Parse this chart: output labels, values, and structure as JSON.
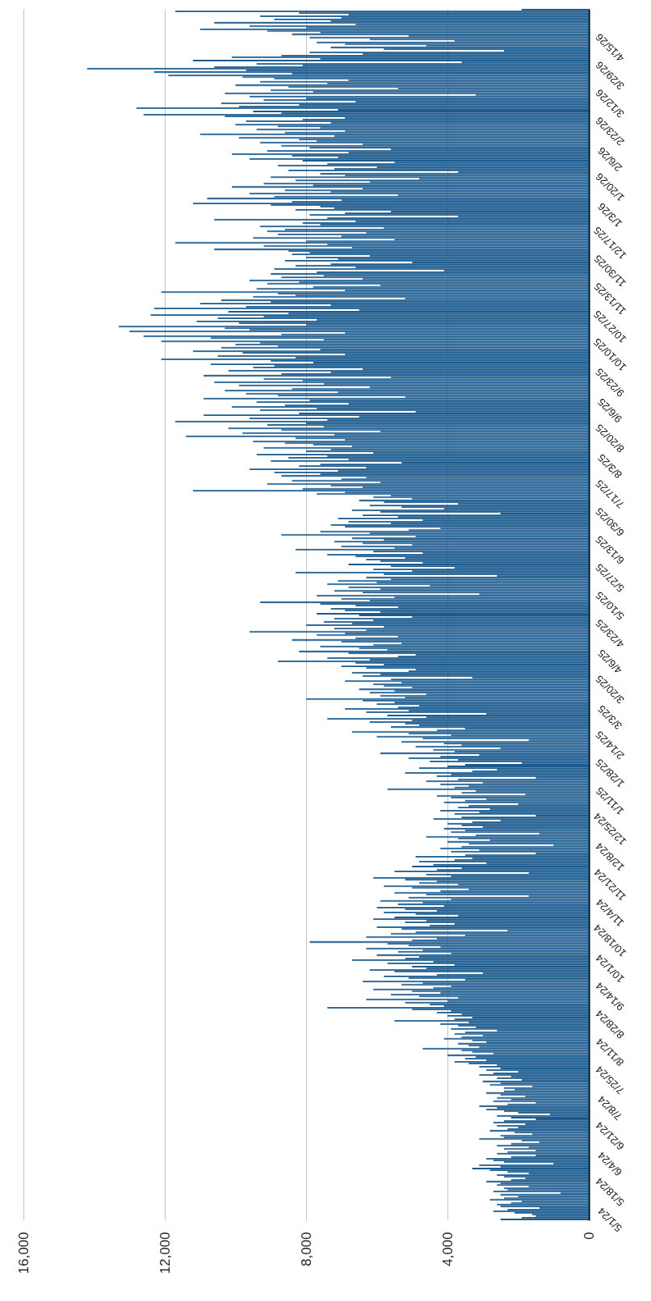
{
  "chart_data": {
    "type": "bar",
    "orientation": "horizontal",
    "color": "#1b5a8e",
    "grid": "x",
    "xlim": [
      16000,
      0
    ],
    "xticks": [
      {
        "value": 16000,
        "label": "16,000"
      },
      {
        "value": 12000,
        "label": "12,000"
      },
      {
        "value": 8000,
        "label": "8,000"
      },
      {
        "value": 4000,
        "label": "4,000"
      },
      0
    ],
    "categories": [
      null,
      null,
      null,
      null,
      null,
      null,
      null,
      null,
      null,
      null,
      null,
      null,
      null,
      null,
      null,
      null,
      null,
      null,
      null,
      null,
      null,
      null,
      null,
      "4/15/26",
      null,
      null,
      null,
      null,
      null,
      null,
      null,
      null,
      null,
      null,
      null,
      null,
      null,
      null,
      null,
      null,
      "3/29/26",
      null,
      null,
      null,
      null,
      null,
      null,
      null,
      null,
      null,
      null,
      null,
      null,
      null,
      null,
      null,
      null,
      "3/12/26",
      null,
      null,
      null,
      null,
      null,
      null,
      null,
      null,
      null,
      null,
      null,
      null,
      null,
      null,
      null,
      null,
      "2/23/26",
      null,
      null,
      null,
      null,
      null,
      null,
      null,
      null,
      null,
      null,
      null,
      null,
      null,
      null,
      null,
      null,
      "2/6/26",
      null,
      null,
      null,
      null,
      null,
      null,
      null,
      null,
      null,
      null,
      null,
      null,
      null,
      null,
      null,
      null,
      "1/20/26",
      null,
      null,
      null,
      null,
      null,
      null,
      null,
      null,
      null,
      null,
      null,
      null,
      null,
      null,
      null,
      null,
      "1/3/26",
      null,
      null,
      null,
      null,
      null,
      null,
      null,
      null,
      null,
      null,
      null,
      null,
      null,
      null,
      null,
      null,
      "12/17/25",
      null,
      null,
      null,
      null,
      null,
      null,
      null,
      null,
      null,
      null,
      null,
      null,
      null,
      null,
      null,
      null,
      "11/30/25",
      null,
      null,
      null,
      null,
      null,
      null,
      null,
      null,
      null,
      null,
      null,
      null,
      null,
      null,
      null,
      null,
      "11/13/25",
      null,
      null,
      null,
      null,
      null,
      null,
      null,
      null,
      null,
      null,
      null,
      null,
      null,
      null,
      null,
      null,
      "10/27/25",
      null,
      null,
      null,
      null,
      null,
      null,
      null,
      null,
      null,
      null,
      null,
      null,
      null,
      null,
      null,
      null,
      "10/10/25",
      null,
      null,
      null,
      null,
      null,
      null,
      null,
      null,
      null,
      null,
      null,
      null,
      null,
      null,
      null,
      null,
      "9/23/25",
      null,
      null,
      null,
      null,
      null,
      null,
      null,
      null,
      null,
      null,
      null,
      null,
      null,
      null,
      null,
      null,
      "9/6/25",
      null,
      null,
      null,
      null,
      null,
      null,
      null,
      null,
      null,
      null,
      null,
      null,
      null,
      null,
      null,
      null,
      "8/20/25",
      null,
      null,
      null,
      null,
      null,
      null,
      null,
      null,
      null,
      null,
      null,
      null,
      null,
      null,
      null,
      null,
      "8/3/25",
      null,
      null,
      null,
      null,
      null,
      null,
      null,
      null,
      null,
      null,
      null,
      null,
      null,
      null,
      null,
      null,
      "7/17/25",
      null,
      null,
      null,
      null,
      null,
      null,
      null,
      null,
      null,
      null,
      null,
      null,
      null,
      null,
      null,
      null,
      "6/30/25",
      null,
      null,
      null,
      null,
      null,
      null,
      null,
      null,
      null,
      null,
      null,
      null,
      null,
      null,
      null,
      null,
      "6/13/25",
      null,
      null,
      null,
      null,
      null,
      null,
      null,
      null,
      null,
      null,
      null,
      null,
      null,
      null,
      null,
      null,
      "5/27/25",
      null,
      null,
      null,
      null,
      null,
      null,
      null,
      null,
      null,
      null,
      null,
      null,
      null,
      null,
      null,
      null,
      "5/10/25",
      null,
      null,
      null,
      null,
      null,
      null,
      null,
      null,
      null,
      null,
      null,
      null,
      null,
      null,
      null,
      null,
      "4/23/25",
      null,
      null,
      null,
      null,
      null,
      null,
      null,
      null,
      null,
      null,
      null,
      null,
      null,
      null,
      null,
      null,
      "4/6/25",
      null,
      null,
      null,
      null,
      null,
      null,
      null,
      null,
      null,
      null,
      null,
      null,
      null,
      null,
      null,
      null,
      "3/20/25",
      null,
      null,
      null,
      null,
      null,
      null,
      null,
      null,
      null,
      null,
      null,
      null,
      null,
      null,
      null,
      null,
      "3/3/25",
      null,
      null,
      null,
      null,
      null,
      null,
      null,
      null,
      null,
      null,
      null,
      null,
      null,
      null,
      null,
      null,
      "2/14/25",
      null,
      null,
      null,
      null,
      null,
      null,
      null,
      null,
      null,
      null,
      null,
      null,
      null,
      null,
      null,
      null,
      "1/28/25",
      null,
      null,
      null,
      null,
      null,
      null,
      null,
      null,
      null,
      null,
      null,
      null,
      null,
      null,
      null,
      null,
      "1/11/25",
      null,
      null,
      null,
      null,
      null,
      null,
      null,
      null,
      null,
      null,
      null,
      null,
      null,
      null,
      null,
      null,
      "12/25/24",
      null,
      null,
      null,
      null,
      null,
      null,
      null,
      null,
      null,
      null,
      null,
      null,
      null,
      null,
      null,
      null,
      "12/8/24",
      null,
      null,
      null,
      null,
      null,
      null,
      null,
      null,
      null,
      null,
      null,
      null,
      null,
      null,
      null,
      null,
      "11/21/24",
      null,
      null,
      null,
      null,
      null,
      null,
      null,
      null,
      null,
      null,
      null,
      null,
      null,
      null,
      null,
      null,
      "11/4/24",
      null,
      null,
      null,
      null,
      null,
      null,
      null,
      null,
      null,
      null,
      null,
      null,
      null,
      null,
      null,
      null,
      "10/18/24",
      null,
      null,
      null,
      null,
      null,
      null,
      null,
      null,
      null,
      null,
      null,
      null,
      null,
      null,
      null,
      null,
      "10/1/24",
      null,
      null,
      null,
      null,
      null,
      null,
      null,
      null,
      null,
      null,
      null,
      null,
      null,
      null,
      null,
      null,
      "9/14/24",
      null,
      null,
      null,
      null,
      null,
      null,
      null,
      null,
      null,
      null,
      null,
      null,
      null,
      null,
      null,
      null,
      "8/28/24",
      null,
      null,
      null,
      null,
      null,
      null,
      null,
      null,
      null,
      null,
      null,
      null,
      null,
      null,
      null,
      null,
      "8/11/24",
      null,
      null,
      null,
      null,
      null,
      null,
      null,
      null,
      null,
      null,
      null,
      null,
      null,
      null,
      null,
      null,
      "7/25/24",
      null,
      null,
      null,
      null,
      null,
      null,
      null,
      null,
      null,
      null,
      null,
      null,
      null,
      null,
      null,
      null,
      "7/8/24",
      null,
      null,
      null,
      null,
      null,
      null,
      null,
      null,
      null,
      null,
      null,
      null,
      null,
      null,
      null,
      null,
      "6/21/24",
      null,
      null,
      null,
      null,
      null,
      null,
      null,
      null,
      null,
      null,
      null,
      null,
      null,
      null,
      null,
      null,
      "6/4/24",
      null,
      null,
      null,
      null,
      null,
      null,
      null,
      null,
      null,
      null,
      null,
      null,
      null,
      null,
      null,
      null,
      "5/18/24",
      null,
      null,
      null,
      null,
      null,
      null,
      null,
      null,
      null,
      null,
      null,
      null,
      null,
      null,
      null,
      null,
      "5/1/24"
    ],
    "values": [
      1900,
      11700,
      8200,
      6800,
      9300,
      7000,
      8900,
      7300,
      10600,
      6600,
      9600,
      8000,
      11000,
      9100,
      7600,
      8400,
      5100,
      7900,
      6200,
      3800,
      7700,
      6900,
      4600,
      7300,
      5800,
      2400,
      7900,
      6400,
      8700,
      10100,
      7600,
      11200,
      3600,
      9400,
      8100,
      10600,
      14200,
      9700,
      12300,
      8400,
      11900,
      9800,
      8900,
      6800,
      9300,
      7400,
      10000,
      8500,
      5400,
      9000,
      7800,
      10300,
      3200,
      9600,
      8000,
      9200,
      6600,
      10400,
      8200,
      9900,
      12800,
      7100,
      9500,
      8700,
      12600,
      10300,
      6900,
      8100,
      9700,
      7300,
      10000,
      8800,
      7600,
      9400,
      6900,
      8600,
      11000,
      7200,
      9900,
      8200,
      7700,
      9300,
      6400,
      8700,
      7900,
      5600,
      9100,
      6800,
      10100,
      8400,
      7100,
      9600,
      8100,
      5500,
      7400,
      8800,
      6000,
      7200,
      8500,
      3700,
      7600,
      6900,
      9000,
      4800,
      8300,
      6200,
      9200,
      7800,
      10100,
      6400,
      8600,
      7300,
      9600,
      5400,
      8900,
      10800,
      7000,
      8400,
      11200,
      9000,
      7600,
      7200,
      8300,
      5600,
      6900,
      7900,
      3700,
      7400,
      10600,
      6600,
      8100,
      7600,
      9300,
      5800,
      8600,
      9100,
      6300,
      8800,
      7000,
      9500,
      5500,
      8000,
      11700,
      7400,
      9200,
      6700,
      10600,
      8500,
      7900,
      8400,
      6200,
      8000,
      7100,
      8600,
      5000,
      7300,
      8300,
      6600,
      8900,
      4100,
      7700,
      9000,
      7500,
      8700,
      6400,
      9600,
      8200,
      9100,
      5900,
      7800,
      9400,
      6900,
      12100,
      8800,
      8300,
      9500,
      5200,
      10400,
      9000,
      11000,
      7300,
      9700,
      12300,
      6500,
      10200,
      8500,
      12400,
      9200,
      10500,
      7700,
      11100,
      9900,
      8000,
      13300,
      10300,
      9600,
      13000,
      6900,
      8700,
      12600,
      10700,
      7500,
      12100,
      9300,
      10000,
      8800,
      10400,
      7600,
      11200,
      9800,
      6900,
      10500,
      8300,
      12100,
      9000,
      7800,
      10700,
      8900,
      9500,
      6400,
      10200,
      7300,
      8700,
      10900,
      5600,
      9200,
      8100,
      10600,
      7500,
      9900,
      6200,
      8400,
      10300,
      7100,
      9700,
      8800,
      5200,
      10900,
      7900,
      9400,
      6800,
      8600,
      10100,
      7700,
      9300,
      4900,
      8200,
      10900,
      6500,
      9600,
      7400,
      11700,
      8000,
      9100,
      7500,
      10200,
      8700,
      5900,
      9800,
      7200,
      11400,
      8300,
      6900,
      9500,
      8600,
      7800,
      6700,
      9200,
      7300,
      8000,
      6100,
      9400,
      7400,
      8500,
      6800,
      9000,
      5300,
      7600,
      8200,
      6300,
      9600,
      7100,
      8900,
      7600,
      8700,
      6300,
      7000,
      8400,
      5900,
      9100,
      7300,
      6400,
      8100,
      11200,
      6900,
      7700,
      5600,
      6100,
      5000,
      6500,
      5800,
      3700,
      6200,
      5300,
      4100,
      6700,
      5900,
      2500,
      6400,
      5400,
      7100,
      4700,
      6800,
      5600,
      7300,
      6900,
      4200,
      5100,
      7600,
      6200,
      8700,
      4900,
      6700,
      5800,
      7200,
      6400,
      5000,
      7000,
      5500,
      8300,
      6100,
      4700,
      7400,
      6600,
      5200,
      6300,
      5900,
      4700,
      6800,
      5600,
      3800,
      6100,
      5000,
      8300,
      5800,
      2600,
      6300,
      5600,
      7100,
      6000,
      7400,
      4500,
      6800,
      5900,
      7200,
      6400,
      3100,
      7700,
      5500,
      7000,
      6200,
      9300,
      7600,
      6600,
      5400,
      7300,
      6900,
      5900,
      7700,
      6500,
      5000,
      7200,
      6100,
      7500,
      6700,
      8000,
      5800,
      7200,
      6300,
      9600,
      6900,
      7700,
      5400,
      6600,
      8400,
      7000,
      5300,
      6100,
      7600,
      6500,
      5700,
      8200,
      6800,
      4900,
      5400,
      7400,
      6200,
      8800,
      6600,
      5800,
      7000,
      6300,
      4900,
      5100,
      6700,
      5900,
      6400,
      3300,
      5600,
      6900,
      5300,
      6100,
      5800,
      5000,
      6500,
      5500,
      6200,
      4600,
      5900,
      5200,
      8000,
      6400,
      5500,
      6000,
      4800,
      5400,
      6900,
      5100,
      6300,
      2900,
      5700,
      4600,
      7400,
      5000,
      6200,
      5200,
      4800,
      5600,
      3500,
      4300,
      6700,
      5100,
      3900,
      6000,
      4700,
      1700,
      5300,
      4100,
      3600,
      4900,
      2500,
      4400,
      3800,
      5900,
      3100,
      4200,
      5100,
      3700,
      4500,
      1900,
      3500,
      4000,
      4800,
      2600,
      3300,
      5200,
      3900,
      4300,
      1500,
      3700,
      4600,
      3000,
      4200,
      3400,
      3800,
      5700,
      3200,
      3600,
      1800,
      4300,
      3900,
      2900,
      3500,
      4100,
      2000,
      3400,
      3700,
      2800,
      4200,
      3100,
      3800,
      1500,
      3600,
      4400,
      2500,
      3300,
      4000,
      3600,
      3000,
      4100,
      3500,
      3900,
      1400,
      3200,
      4600,
      3700,
      2800,
      4000,
      3400,
      1000,
      3600,
      4200,
      3100,
      3900,
      1500,
      3500,
      4900,
      3300,
      3800,
      4800,
      2900,
      4400,
      5000,
      3600,
      4300,
      5500,
      1700,
      4600,
      3900,
      6100,
      5200,
      4300,
      4800,
      3700,
      5800,
      5000,
      3400,
      4200,
      5500,
      4600,
      1700,
      5100,
      3900,
      5900,
      4700,
      5400,
      4100,
      6000,
      5200,
      4300,
      5800,
      4900,
      3700,
      5500,
      6100,
      4600,
      5200,
      3800,
      4500,
      6000,
      5300,
      2300,
      4900,
      5600,
      3500,
      6300,
      4300,
      5000,
      7900,
      5700,
      5100,
      4200,
      6300,
      4700,
      5400,
      3900,
      6000,
      4800,
      5200,
      6700,
      4400,
      5700,
      3800,
      5000,
      4600,
      6200,
      5500,
      3000,
      4300,
      5800,
      5100,
      3500,
      6400,
      4700,
      5300,
      3900,
      4400,
      6100,
      5000,
      4200,
      5600,
      4800,
      3700,
      6300,
      4000,
      5200,
      4500,
      4100,
      7400,
      5000,
      3900,
      4300,
      3600,
      4000,
      3300,
      3800,
      5500,
      3400,
      4200,
      3700,
      3200,
      3900,
      2600,
      3500,
      3800,
      3000,
      3600,
      4100,
      3300,
      2900,
      3700,
      3400,
      3100,
      4700,
      3600,
      3300,
      2700,
      4000,
      3200,
      3500,
      2900,
      3800,
      3400,
      2600,
      3100,
      2500,
      2900,
      2000,
      2700,
      3100,
      2200,
      2600,
      1900,
      3000,
      2500,
      2800,
      1600,
      2400,
      2100,
      2400,
      2900,
      2500,
      1800,
      2600,
      2200,
      2700,
      1500,
      2300,
      3100,
      2600,
      2900,
      2400,
      2000,
      1100,
      2600,
      2200,
      1500,
      2400,
      2700,
      1800,
      2600,
      2000,
      2300,
      2800,
      2100,
      1600,
      2500,
      2400,
      3100,
      1900,
      1400,
      2200,
      2600,
      1700,
      2400,
      1500,
      2300,
      2600,
      1500,
      2200,
      2900,
      2700,
      2400,
      1000,
      3100,
      2500,
      3300,
      2800,
      2300,
      1700,
      2600,
      2400,
      1800,
      2200,
      2900,
      2500,
      2600,
      1700,
      2400,
      2300,
      2700,
      800,
      2500,
      2000,
      2400,
      2800,
      1900,
      2200,
      2600,
      2500,
      1400,
      2300,
      2700,
      2100,
      1600,
      1500,
      1900,
      2500
    ]
  }
}
